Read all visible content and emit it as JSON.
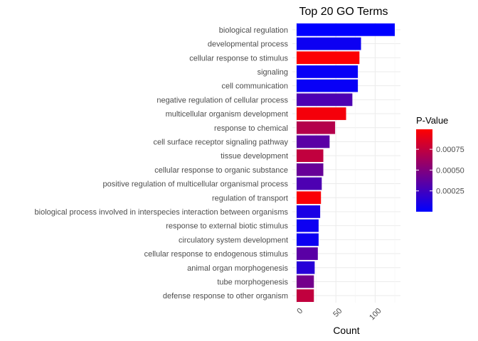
{
  "chart_data": {
    "type": "bar",
    "orientation": "horizontal",
    "title": "Top 20 GO Terms",
    "xlabel": "Count",
    "ylabel": "",
    "xlim": [
      0,
      130
    ],
    "x_ticks": [
      0,
      50,
      100
    ],
    "grid": true,
    "categories": [
      "biological regulation",
      "developmental process",
      "cellular response to stimulus",
      "signaling",
      "cell communication",
      "negative regulation of cellular process",
      "multicellular organism development",
      "response to chemical",
      "cell surface receptor signaling pathway",
      "tissue development",
      "cellular response to organic substance",
      "positive regulation of multicellular organismal process",
      "regulation of transport",
      "biological process involved in interspecies interaction between organisms",
      "response to external biotic stimulus",
      "circulatory system development",
      "cellular response to endogenous stimulus",
      "animal organ morphogenesis",
      "tube morphogenesis",
      "defense response to other organism"
    ],
    "values": [
      125,
      82,
      80,
      78,
      78,
      71,
      63,
      49,
      42,
      34,
      34,
      32,
      31,
      30,
      28,
      28,
      27,
      23,
      22,
      22
    ],
    "pvalues": [
      0.0,
      5e-05,
      0.00098,
      3e-05,
      3e-05,
      0.0003,
      0.00095,
      0.0007,
      0.00035,
      0.00075,
      0.0004,
      0.0003,
      0.00097,
      0.0001,
      5e-05,
      5e-05,
      0.00035,
      0.00015,
      0.00045,
      0.00075
    ],
    "legend": {
      "title": "P-Value",
      "position": "right",
      "ticks": [
        0.00025,
        0.0005,
        0.00075
      ],
      "tick_labels": [
        "0.00025",
        "0.00050",
        "0.00075"
      ],
      "range": [
        0.0,
        0.00099
      ],
      "low_color": "#0000ff",
      "high_color": "#ff0000"
    }
  }
}
